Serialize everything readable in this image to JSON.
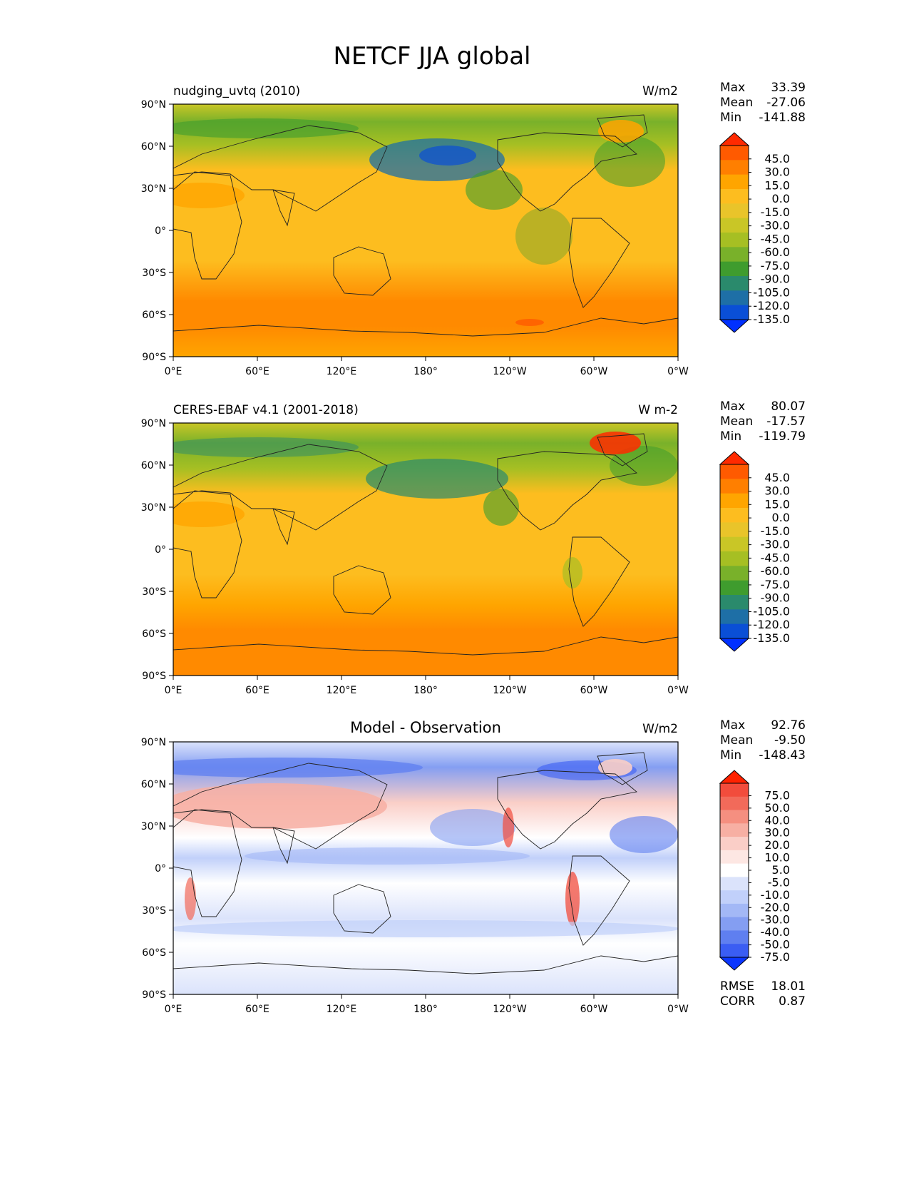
{
  "figure_title": "NETCF JJA global",
  "x_ticks": [
    "0°E",
    "60°E",
    "120°E",
    "180°",
    "120°W",
    "60°W",
    "0°W"
  ],
  "y_ticks": [
    "90°N",
    "60°N",
    "30°N",
    "0°",
    "30°S",
    "60°S",
    "90°S"
  ],
  "panels": [
    {
      "id": "model",
      "left_title": "nudging_uvtq (2010)",
      "center_title": "",
      "units": "W/m2",
      "stats": [
        {
          "label": "Max",
          "value": "33.39"
        },
        {
          "label": "Mean",
          "value": "-27.06"
        },
        {
          "label": "Min",
          "value": "-141.88"
        }
      ],
      "colorbar": {
        "ticks": [
          "45.0",
          "30.0",
          "15.0",
          "0.0",
          "-15.0",
          "-30.0",
          "-45.0",
          "-60.0",
          "-75.0",
          "-90.0",
          "-105.0",
          "-120.0",
          "-135.0"
        ],
        "colors": [
          "#ff2a00",
          "#ff5a00",
          "#ff7f00",
          "#ffa500",
          "#fdbd1f",
          "#e9c42a",
          "#c9c626",
          "#a6bf23",
          "#79b12a",
          "#3f9c2e",
          "#2a8a6c",
          "#1e6fa6",
          "#0a4fd6",
          "#0030ff"
        ]
      }
    },
    {
      "id": "obs",
      "left_title": "CERES-EBAF v4.1 (2001-2018)",
      "center_title": "",
      "units": "W m-2",
      "stats": [
        {
          "label": "Max",
          "value": "80.07"
        },
        {
          "label": "Mean",
          "value": "-17.57"
        },
        {
          "label": "Min",
          "value": "-119.79"
        }
      ],
      "colorbar": {
        "ticks": [
          "45.0",
          "30.0",
          "15.0",
          "0.0",
          "-15.0",
          "-30.0",
          "-45.0",
          "-60.0",
          "-75.0",
          "-90.0",
          "-105.0",
          "-120.0",
          "-135.0"
        ],
        "colors": [
          "#ff2a00",
          "#ff5a00",
          "#ff7f00",
          "#ffa500",
          "#fdbd1f",
          "#e9c42a",
          "#c9c626",
          "#a6bf23",
          "#79b12a",
          "#3f9c2e",
          "#2a8a6c",
          "#1e6fa6",
          "#0a4fd6",
          "#0030ff"
        ]
      }
    },
    {
      "id": "diff",
      "left_title": "",
      "center_title": "Model - Observation",
      "units": "W/m2",
      "stats": [
        {
          "label": "Max",
          "value": "92.76"
        },
        {
          "label": "Mean",
          "value": "-9.50"
        },
        {
          "label": "Min",
          "value": "-148.43"
        }
      ],
      "extra_stats": [
        {
          "label": "RMSE",
          "value": "18.01"
        },
        {
          "label": "CORR",
          "value": "0.87"
        }
      ],
      "colorbar": {
        "ticks": [
          "75.0",
          "50.0",
          "40.0",
          "30.0",
          "20.0",
          "10.0",
          "5.0",
          "-5.0",
          "-10.0",
          "-20.0",
          "-30.0",
          "-40.0",
          "-50.0",
          "-75.0"
        ],
        "colors": [
          "#ff2200",
          "#f24c3c",
          "#f26a5a",
          "#f58f80",
          "#f7afa3",
          "#facec7",
          "#fde7e3",
          "#ffffff",
          "#dbe3fb",
          "#c1d0fa",
          "#a3b8f6",
          "#849ef2",
          "#5f7ff0",
          "#3a5df3",
          "#0b36ff"
        ]
      }
    }
  ]
}
